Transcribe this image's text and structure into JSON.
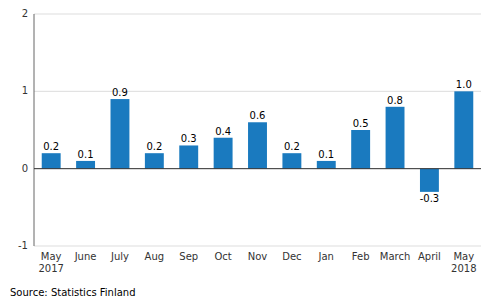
{
  "chart_data": {
    "type": "bar",
    "categories": [
      "May\n2017",
      "June",
      "July",
      "Aug",
      "Sep",
      "Oct",
      "Nov",
      "Dec",
      "Jan",
      "Feb",
      "March",
      "April",
      "May\n2018"
    ],
    "values": [
      0.2,
      0.1,
      0.9,
      0.2,
      0.3,
      0.4,
      0.6,
      0.2,
      0.1,
      0.5,
      0.8,
      -0.3,
      1.0
    ],
    "value_labels": [
      "0.2",
      "0.1",
      "0.9",
      "0.2",
      "0.3",
      "0.4",
      "0.6",
      "0.2",
      "0.1",
      "0.5",
      "0.8",
      "-0.3",
      "1.0"
    ],
    "color": "#1a7abf",
    "ylim": [
      -1.0,
      2.0
    ],
    "yticks": [
      -1,
      0,
      1,
      2
    ],
    "grid": true,
    "data_labels": true,
    "annotation": "Source: Statistics Finland"
  }
}
